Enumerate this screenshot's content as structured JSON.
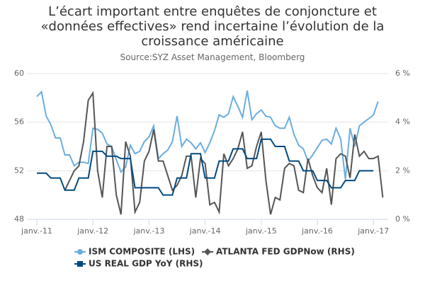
{
  "chart_data": {
    "type": "line",
    "title": "L’écart important entre enquêtes de conjoncture et «données effectives» rend incertaine l’évolution de la croissance américaine",
    "subtitle": "Source:SYZ Asset Management, Bloomberg",
    "categories": [
      "janv.-11",
      null,
      null,
      null,
      null,
      null,
      null,
      null,
      null,
      null,
      null,
      null,
      "janv.-12",
      null,
      null,
      null,
      null,
      null,
      null,
      null,
      null,
      null,
      null,
      null,
      "janv.-13",
      null,
      null,
      null,
      null,
      null,
      null,
      null,
      null,
      null,
      null,
      null,
      "janv.-14",
      null,
      null,
      null,
      null,
      null,
      null,
      null,
      null,
      null,
      null,
      null,
      "janv.-15",
      null,
      null,
      null,
      null,
      null,
      null,
      null,
      null,
      null,
      null,
      null,
      "janv.-16",
      null,
      null,
      null,
      null,
      null,
      null,
      null,
      null,
      null,
      null,
      null,
      "janv.-17",
      null,
      null
    ],
    "ylim": [
      48,
      60
    ],
    "yticks": [
      48,
      52,
      56,
      60
    ],
    "y2lim": [
      0,
      6
    ],
    "y2ticks": [
      {
        "value": 0,
        "label": "0 %"
      },
      {
        "value": 2,
        "label": "2 %"
      },
      {
        "value": 4,
        "label": "4 %"
      },
      {
        "value": 6,
        "label": "6 %"
      }
    ],
    "grid": true,
    "legend": "bottom",
    "series": [
      {
        "name": "ISM COMPOSITE (LHS)",
        "color": "#6aaee0",
        "axis": "y",
        "marker": "circle",
        "values": [
          58.1,
          58.5,
          56.5,
          55.8,
          54.7,
          54.7,
          53.3,
          53.3,
          52.4,
          52.7,
          52.7,
          52.6,
          55.5,
          55.4,
          55.1,
          54.2,
          54.0,
          52.9,
          51.9,
          52.3,
          54.1,
          53.4,
          53.6,
          54.4,
          54.8,
          55.7,
          53.0,
          53.4,
          53.7,
          54.4,
          56.5,
          54.0,
          54.6,
          54.3,
          53.8,
          54.3,
          53.5,
          54.3,
          55.3,
          56.6,
          56.4,
          56.7,
          58.1,
          57.3,
          56.4,
          58.6,
          56.2,
          56.7,
          57.0,
          56.5,
          56.4,
          55.7,
          55.5,
          55.5,
          56.4,
          55.0,
          54.1,
          53.8,
          52.8,
          53.3,
          53.9,
          54.5,
          54.6,
          54.2,
          55.5,
          54.6,
          51.3,
          55.5,
          54.0,
          55.7,
          56.0,
          56.3,
          56.6,
          57.7,
          null
        ]
      },
      {
        "name": "ATLANTA FED GDPNow (RHS)",
        "color": "#555555",
        "axis": "y2",
        "marker": "diamond",
        "values": [
          null,
          null,
          null,
          null,
          null,
          null,
          1.2,
          1.6,
          2.0,
          2.2,
          3.2,
          4.9,
          5.2,
          2.0,
          0.9,
          3.0,
          3.0,
          1.0,
          0.2,
          3.2,
          2.6,
          0.3,
          0.7,
          2.4,
          2.8,
          3.7,
          2.4,
          2.4,
          1.8,
          1.2,
          1.4,
          1.8,
          2.6,
          2.6,
          0.9,
          2.5,
          2.3,
          0.6,
          0.7,
          0.3,
          2.7,
          2.2,
          2.5,
          2.9,
          3.6,
          2.1,
          2.2,
          3.0,
          3.6,
          1.6,
          0.2,
          0.9,
          0.8,
          2.1,
          2.3,
          2.2,
          1.2,
          1.1,
          2.5,
          1.8,
          1.3,
          1.1,
          2.1,
          0.6,
          2.5,
          2.7,
          2.6,
          1.7,
          3.5,
          2.6,
          2.8,
          2.5,
          2.5,
          2.6,
          0.9
        ]
      },
      {
        "name": "US REAL GDP YoY (RHS)",
        "color": "#004a80",
        "axis": "y2",
        "marker": "square",
        "values": [
          1.9,
          1.9,
          1.9,
          1.7,
          1.7,
          1.7,
          1.2,
          1.2,
          1.2,
          1.7,
          1.7,
          1.7,
          2.8,
          2.8,
          2.8,
          2.6,
          2.6,
          2.6,
          2.5,
          2.5,
          2.5,
          1.3,
          1.3,
          1.3,
          1.3,
          1.3,
          1.3,
          1.0,
          1.0,
          1.0,
          1.7,
          1.7,
          1.7,
          2.7,
          2.7,
          2.7,
          1.7,
          1.7,
          1.7,
          2.4,
          2.4,
          2.4,
          2.9,
          2.9,
          2.9,
          2.5,
          2.5,
          2.5,
          3.3,
          3.3,
          3.3,
          3.0,
          3.0,
          3.0,
          2.4,
          2.4,
          2.4,
          2.0,
          2.0,
          2.0,
          1.6,
          1.6,
          1.6,
          1.3,
          1.3,
          1.3,
          1.6,
          1.6,
          1.6,
          2.0,
          2.0,
          2.0,
          2.0,
          null,
          null
        ]
      }
    ]
  }
}
